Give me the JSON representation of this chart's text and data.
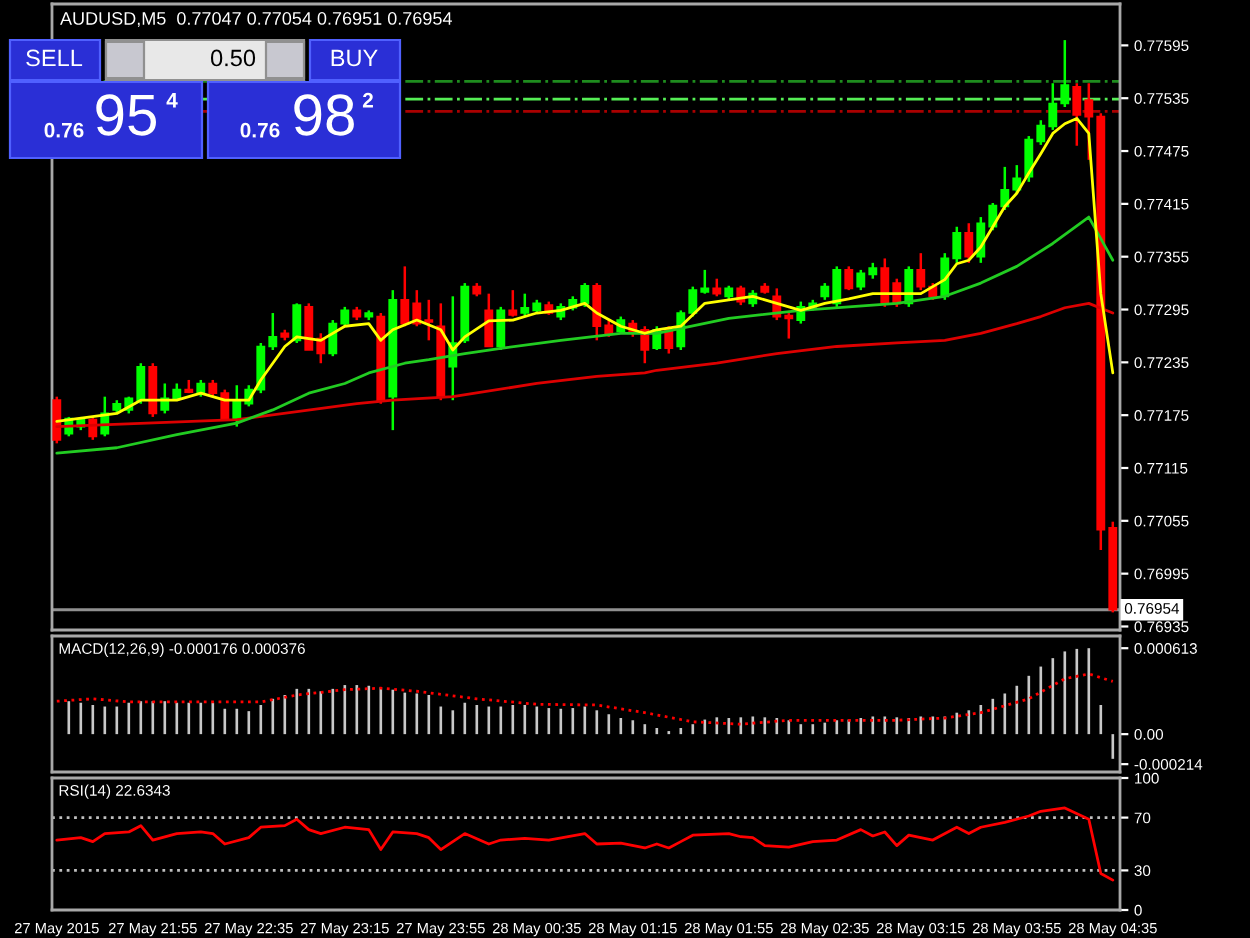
{
  "chart_data": [
    {
      "type": "candlestick",
      "title": "AUDUSD,M5  0.77047 0.77054 0.76951 0.76954",
      "annotations": [
        "SELL",
        "0.50",
        "BUY",
        "0.76",
        "95",
        "4",
        "0.76",
        "98",
        "2"
      ],
      "x": [
        "2015-05-27T21:15",
        "2015-05-27T21:20",
        "2015-05-27T21:25",
        "2015-05-27T21:30",
        "2015-05-27T21:35",
        "2015-05-27T21:40",
        "2015-05-27T21:45",
        "2015-05-27T21:50",
        "2015-05-27T21:55",
        "2015-05-27T22:00",
        "2015-05-27T22:05",
        "2015-05-27T22:10",
        "2015-05-27T22:15",
        "2015-05-27T22:20",
        "2015-05-27T22:25",
        "2015-05-27T22:30",
        "2015-05-27T22:35",
        "2015-05-27T22:40",
        "2015-05-27T22:45",
        "2015-05-27T22:50",
        "2015-05-27T22:55",
        "2015-05-27T23:00",
        "2015-05-27T23:05",
        "2015-05-27T23:10",
        "2015-05-27T23:15",
        "2015-05-27T23:20",
        "2015-05-27T23:25",
        "2015-05-27T23:30",
        "2015-05-27T23:35",
        "2015-05-27T23:40",
        "2015-05-27T23:45",
        "2015-05-27T23:50",
        "2015-05-27T23:55",
        "2015-05-28T00:00",
        "2015-05-28T00:05",
        "2015-05-28T00:10",
        "2015-05-28T00:15",
        "2015-05-28T00:20",
        "2015-05-28T00:25",
        "2015-05-28T00:30",
        "2015-05-28T00:35",
        "2015-05-28T00:40",
        "2015-05-28T00:45",
        "2015-05-28T00:50",
        "2015-05-28T00:55",
        "2015-05-28T01:00",
        "2015-05-28T01:05",
        "2015-05-28T01:10",
        "2015-05-28T01:15",
        "2015-05-28T01:20",
        "2015-05-28T01:25",
        "2015-05-28T01:30",
        "2015-05-28T01:35",
        "2015-05-28T01:40",
        "2015-05-28T01:45",
        "2015-05-28T01:50",
        "2015-05-28T01:55",
        "2015-05-28T02:00",
        "2015-05-28T02:05",
        "2015-05-28T02:10",
        "2015-05-28T02:15",
        "2015-05-28T02:20",
        "2015-05-28T02:25",
        "2015-05-28T02:30",
        "2015-05-28T02:35",
        "2015-05-28T02:40",
        "2015-05-28T02:45",
        "2015-05-28T02:50",
        "2015-05-28T02:55",
        "2015-05-28T03:00",
        "2015-05-28T03:05",
        "2015-05-28T03:10",
        "2015-05-28T03:15",
        "2015-05-28T03:20",
        "2015-05-28T03:25",
        "2015-05-28T03:30",
        "2015-05-28T03:35",
        "2015-05-28T03:40",
        "2015-05-28T03:45",
        "2015-05-28T03:50",
        "2015-05-28T03:55",
        "2015-05-28T04:00",
        "2015-05-28T04:05",
        "2015-05-28T04:10",
        "2015-05-28T04:15",
        "2015-05-28T04:20",
        "2015-05-28T04:25",
        "2015-05-28T04:30",
        "2015-05-28T04:35"
      ],
      "ohlc": [
        [
          0.77192,
          0.77196,
          0.77143,
          0.77147
        ],
        [
          0.77154,
          0.77173,
          0.77151,
          0.77171
        ],
        [
          0.77162,
          0.77173,
          0.77158,
          0.7717
        ],
        [
          0.7717,
          0.77173,
          0.77147,
          0.77151
        ],
        [
          0.77154,
          0.77196,
          0.77151,
          0.77177
        ],
        [
          0.77181,
          0.77192,
          0.77177,
          0.77188
        ],
        [
          0.77181,
          0.77196,
          0.77177,
          0.77194
        ],
        [
          0.77192,
          0.77234,
          0.77188,
          0.7723
        ],
        [
          0.7723,
          0.77234,
          0.77173,
          0.77177
        ],
        [
          0.77181,
          0.77211,
          0.77177,
          0.77194
        ],
        [
          0.77194,
          0.77211,
          0.77192,
          0.77204
        ],
        [
          0.77204,
          0.77215,
          0.772,
          0.77201
        ],
        [
          0.77201,
          0.77215,
          0.77196,
          0.77211
        ],
        [
          0.77211,
          0.77215,
          0.77196,
          0.772
        ],
        [
          0.772,
          0.77204,
          0.7717,
          0.77171
        ],
        [
          0.7717,
          0.77209,
          0.77162,
          0.77192
        ],
        [
          0.77188,
          0.77209,
          0.77185,
          0.77204
        ],
        [
          0.77204,
          0.77257,
          0.772,
          0.77253
        ],
        [
          0.77253,
          0.77291,
          0.77249,
          0.77264
        ],
        [
          0.77268,
          0.77272,
          0.7726,
          0.77264
        ],
        [
          0.7726,
          0.77302,
          0.77257,
          0.773
        ],
        [
          0.77298,
          0.77302,
          0.77249,
          0.77249
        ],
        [
          0.77262,
          0.77268,
          0.77234,
          0.77245
        ],
        [
          0.77245,
          0.77283,
          0.77242,
          0.77279
        ],
        [
          0.77279,
          0.77298,
          0.77276,
          0.77294
        ],
        [
          0.77294,
          0.77298,
          0.77283,
          0.77287
        ],
        [
          0.77287,
          0.77294,
          0.77283,
          0.77291
        ],
        [
          0.77287,
          0.77291,
          0.77188,
          0.77192
        ],
        [
          0.77196,
          0.77317,
          0.77158,
          0.77306
        ],
        [
          0.77306,
          0.77344,
          0.77276,
          0.77279
        ],
        [
          0.77302,
          0.77317,
          0.77276,
          0.77279
        ],
        [
          0.77283,
          0.77306,
          0.7726,
          0.77281
        ],
        [
          0.77276,
          0.77302,
          0.77192,
          0.77196
        ],
        [
          0.7723,
          0.7731,
          0.77192,
          0.77257
        ],
        [
          0.7726,
          0.77325,
          0.77257,
          0.77321
        ],
        [
          0.77321,
          0.77325,
          0.7731,
          0.77313
        ],
        [
          0.77294,
          0.77313,
          0.77253,
          0.77253
        ],
        [
          0.77253,
          0.77298,
          0.77249,
          0.77294
        ],
        [
          0.77294,
          0.77317,
          0.77287,
          0.77289
        ],
        [
          0.77291,
          0.77313,
          0.77287,
          0.77297
        ],
        [
          0.77294,
          0.77306,
          0.77291,
          0.77302
        ],
        [
          0.773,
          0.77304,
          0.77289,
          0.77291
        ],
        [
          0.77287,
          0.77302,
          0.77283,
          0.77298
        ],
        [
          0.77297,
          0.7731,
          0.77294,
          0.77306
        ],
        [
          0.77302,
          0.77325,
          0.77298,
          0.77322
        ],
        [
          0.77322,
          0.77325,
          0.7726,
          0.77276
        ],
        [
          0.77277,
          0.77283,
          0.77264,
          0.77268
        ],
        [
          0.7727,
          0.77287,
          0.77268,
          0.77283
        ],
        [
          0.77279,
          0.77283,
          0.77264,
          0.77268
        ],
        [
          0.77272,
          0.77276,
          0.77234,
          0.77249
        ],
        [
          0.77251,
          0.77276,
          0.77249,
          0.77272
        ],
        [
          0.77272,
          0.77276,
          0.77245,
          0.77251
        ],
        [
          0.77253,
          0.77294,
          0.77249,
          0.77291
        ],
        [
          0.77291,
          0.77321,
          0.77287,
          0.77317
        ],
        [
          0.77315,
          0.7734,
          0.77313,
          0.77319
        ],
        [
          0.77319,
          0.7733,
          0.7731,
          0.77313
        ],
        [
          0.7731,
          0.77322,
          0.77306,
          0.77319
        ],
        [
          0.77319,
          0.77322,
          0.773,
          0.77304
        ],
        [
          0.77302,
          0.77317,
          0.77298,
          0.77313
        ],
        [
          0.77321,
          0.77325,
          0.77313,
          0.77315
        ],
        [
          0.7731,
          0.77319,
          0.77283,
          0.77287
        ],
        [
          0.77288,
          0.77291,
          0.77262,
          0.77285
        ],
        [
          0.77283,
          0.77304,
          0.77279,
          0.77298
        ],
        [
          0.77298,
          0.77306,
          0.77294,
          0.77302
        ],
        [
          0.7731,
          0.77325,
          0.77306,
          0.77321
        ],
        [
          0.77302,
          0.77344,
          0.77298,
          0.7734
        ],
        [
          0.7734,
          0.77344,
          0.77317,
          0.77319
        ],
        [
          0.77321,
          0.7734,
          0.77317,
          0.77336
        ],
        [
          0.77335,
          0.77348,
          0.7733,
          0.77342
        ],
        [
          0.77342,
          0.77353,
          0.77298,
          0.77302
        ],
        [
          0.77325,
          0.7733,
          0.77298,
          0.77302
        ],
        [
          0.77302,
          0.77344,
          0.77298,
          0.7734
        ],
        [
          0.7734,
          0.77359,
          0.77317,
          0.77321
        ],
        [
          0.77321,
          0.77325,
          0.77306,
          0.7731
        ],
        [
          0.7731,
          0.77359,
          0.77306,
          0.77353
        ],
        [
          0.77353,
          0.77389,
          0.77348,
          0.77382
        ],
        [
          0.77382,
          0.77393,
          0.77348,
          0.77355
        ],
        [
          0.77355,
          0.774,
          0.77348,
          0.77393
        ],
        [
          0.77389,
          0.77416,
          0.77385,
          0.77413
        ],
        [
          0.77412,
          0.77457,
          0.77408,
          0.77431
        ],
        [
          0.77431,
          0.77459,
          0.77427,
          0.77444
        ],
        [
          0.77446,
          0.77492,
          0.7744,
          0.77488
        ],
        [
          0.77486,
          0.7751,
          0.77482,
          0.77504
        ],
        [
          0.77503,
          0.77552,
          0.77499,
          0.77529
        ],
        [
          0.77529,
          0.77601,
          0.77525,
          0.7755
        ],
        [
          0.77548,
          0.77552,
          0.77481,
          0.77516
        ],
        [
          0.77533,
          0.77552,
          0.77465,
          0.77514
        ],
        [
          0.77514,
          0.77518,
          0.77022,
          0.77045
        ],
        [
          0.77047,
          0.77054,
          0.76951,
          0.76954
        ]
      ],
      "colors": [
        "#ff0000",
        "#00ff00",
        "#00ff00",
        "#ff0000",
        "#00ff00",
        "#00ff00",
        "#00ff00",
        "#00ff00",
        "#ff0000",
        "#00ff00",
        "#00ff00",
        "#ff0000",
        "#00ff00",
        "#ff0000",
        "#ff0000",
        "#00ff00",
        "#00ff00",
        "#00ff00",
        "#00ff00",
        "#ff0000",
        "#00ff00",
        "#ff0000",
        "#ff0000",
        "#00ff00",
        "#00ff00",
        "#ff0000",
        "#00ff00",
        "#ff0000",
        "#00ff00",
        "#ff0000",
        "#ff0000",
        "#ff0000",
        "#ff0000",
        "#00ff00",
        "#00ff00",
        "#ff0000",
        "#ff0000",
        "#00ff00",
        "#ff0000",
        "#00ff00",
        "#00ff00",
        "#ff0000",
        "#00ff00",
        "#00ff00",
        "#00ff00",
        "#ff0000",
        "#ff0000",
        "#00ff00",
        "#ff0000",
        "#ff0000",
        "#00ff00",
        "#ff0000",
        "#00ff00",
        "#00ff00",
        "#00ff00",
        "#ff0000",
        "#00ff00",
        "#ff0000",
        "#00ff00",
        "#ff0000",
        "#ff0000",
        "#ff0000",
        "#00ff00",
        "#00ff00",
        "#00ff00",
        "#00ff00",
        "#ff0000",
        "#00ff00",
        "#00ff00",
        "#ff0000",
        "#ff0000",
        "#00ff00",
        "#ff0000",
        "#ff0000",
        "#00ff00",
        "#00ff00",
        "#ff0000",
        "#00ff00",
        "#00ff00",
        "#00ff00",
        "#00ff00",
        "#00ff00",
        "#00ff00",
        "#00ff00",
        "#00ff00",
        "#ff0000",
        "#ff0000",
        "#ff0000",
        "#ff0000"
      ],
      "series": [
        {
          "type": "line",
          "color": "#dd0000",
          "x": [
            "2015-05-27T21:15",
            "2015-05-27T22:30",
            "2015-05-27T23:20",
            "2015-05-27T23:35",
            "2015-05-28T00:00",
            "2015-05-28T00:35",
            "2015-05-28T01:00",
            "2015-05-28T01:20",
            "2015-05-28T01:25",
            "2015-05-28T01:50",
            "2015-05-28T02:15",
            "2015-05-28T02:40",
            "2015-05-28T03:05",
            "2015-05-28T03:25",
            "2015-05-28T03:40",
            "2015-05-28T03:55",
            "2015-05-28T04:05",
            "2015-05-28T04:15",
            "2015-05-28T04:25",
            "2015-05-28T04:35"
          ],
          "values": [
            0.77162,
            0.7717,
            0.77188,
            0.77192,
            0.77196,
            0.77211,
            0.77219,
            0.77223,
            0.77226,
            0.77234,
            0.77245,
            0.77253,
            0.77257,
            0.7726,
            0.77268,
            0.77279,
            0.77287,
            0.77297,
            0.77302,
            0.77291
          ]
        },
        {
          "type": "line",
          "color": "#22cc22",
          "x": [
            "2015-05-27T21:15",
            "2015-05-27T21:40",
            "2015-05-27T22:05",
            "2015-05-27T22:30",
            "2015-05-27T22:45",
            "2015-05-27T23:00",
            "2015-05-27T23:15",
            "2015-05-27T23:25",
            "2015-05-27T23:40",
            "2015-05-27T23:50",
            "2015-05-28T00:05",
            "2015-05-28T00:20",
            "2015-05-28T00:45",
            "2015-05-28T01:10",
            "2015-05-28T01:25",
            "2015-05-28T01:55",
            "2015-05-28T02:25",
            "2015-05-28T03:05",
            "2015-05-28T03:25",
            "2015-05-28T03:40",
            "2015-05-28T03:55",
            "2015-05-28T04:10",
            "2015-05-28T04:25",
            "2015-05-28T04:35"
          ],
          "values": [
            0.77132,
            0.77138,
            0.77153,
            0.77166,
            0.77181,
            0.772,
            0.77211,
            0.77223,
            0.77234,
            0.77238,
            0.77245,
            0.77251,
            0.7726,
            0.77268,
            0.77268,
            0.77285,
            0.77294,
            0.77302,
            0.7731,
            0.77325,
            0.77344,
            0.7737,
            0.774,
            0.77351
          ]
        },
        {
          "type": "line",
          "color": "#ffff00",
          "x": [
            "2015-05-27T21:15",
            "2015-05-27T21:40",
            "2015-05-27T21:50",
            "2015-05-27T22:05",
            "2015-05-27T22:15",
            "2015-05-27T22:25",
            "2015-05-27T22:35",
            "2015-05-27T22:40",
            "2015-05-27T22:50",
            "2015-05-27T22:55",
            "2015-05-27T23:05",
            "2015-05-27T23:15",
            "2015-05-27T23:25",
            "2015-05-27T23:30",
            "2015-05-27T23:35",
            "2015-05-27T23:45",
            "2015-05-27T23:55",
            "2015-05-28T00:00",
            "2015-05-28T00:05",
            "2015-05-28T00:15",
            "2015-05-28T00:25",
            "2015-05-28T00:35",
            "2015-05-28T00:45",
            "2015-05-28T00:55",
            "2015-05-28T01:00",
            "2015-05-28T01:10",
            "2015-05-28T01:20",
            "2015-05-28T01:25",
            "2015-05-28T01:35",
            "2015-05-28T01:45",
            "2015-05-28T01:55",
            "2015-05-28T02:05",
            "2015-05-28T02:15",
            "2015-05-28T02:25",
            "2015-05-28T02:35",
            "2015-05-28T02:45",
            "2015-05-28T02:55",
            "2015-05-28T03:05",
            "2015-05-28T03:15",
            "2015-05-28T03:25",
            "2015-05-28T03:30",
            "2015-05-28T03:35",
            "2015-05-28T03:40",
            "2015-05-28T03:45",
            "2015-05-28T03:50",
            "2015-05-28T03:55",
            "2015-05-28T04:00",
            "2015-05-28T04:05",
            "2015-05-28T04:10",
            "2015-05-28T04:15",
            "2015-05-28T04:20",
            "2015-05-28T04:25",
            "2015-05-28T04:30",
            "2015-05-28T04:35"
          ],
          "values": [
            0.77168,
            0.77177,
            0.77192,
            0.77192,
            0.772,
            0.77192,
            0.77192,
            0.77215,
            0.77253,
            0.77264,
            0.7726,
            0.77276,
            0.77279,
            0.7726,
            0.77272,
            0.77283,
            0.77272,
            0.77249,
            0.77264,
            0.77282,
            0.77283,
            0.77291,
            0.77294,
            0.77302,
            0.77291,
            0.77276,
            0.77268,
            0.77272,
            0.77276,
            0.77302,
            0.77306,
            0.7731,
            0.77302,
            0.77294,
            0.77302,
            0.77307,
            0.77313,
            0.77313,
            0.77313,
            0.77329,
            0.77347,
            0.77351,
            0.77366,
            0.77389,
            0.77412,
            0.77427,
            0.7745,
            0.77472,
            0.77495,
            0.77506,
            0.77512,
            0.77495,
            0.77313,
            0.77223
          ]
        }
      ],
      "ref_lines": [
        {
          "axis": "y",
          "value": 0.77554,
          "color": "#1e8c1e",
          "line_style": "dashdot"
        },
        {
          "axis": "y",
          "value": 0.77534,
          "color": "#55ee55",
          "line_style": "dashdot"
        },
        {
          "axis": "y",
          "value": 0.7752,
          "color": "#aa0000",
          "line_style": "dashdot"
        },
        {
          "axis": "y",
          "value": 0.76954,
          "label": "0.76954",
          "color": "#909090",
          "line_style": "solid"
        }
      ],
      "xlim": [
        "2015-05-27T21:13",
        "2015-05-28T04:38"
      ],
      "tick_labels": "y",
      "ylim": [
        0.76931,
        0.77642
      ],
      "yticks": [
        0.77595,
        0.77535,
        0.77475,
        0.77415,
        0.77355,
        0.77295,
        0.77235,
        0.77175,
        0.77115,
        0.77055,
        0.76995,
        0.76935
      ],
      "grid": false,
      "legend": false
    },
    {
      "type": "bar",
      "title": "MACD(12,26,9) -0.000176 0.000376",
      "color": "#c8c8c8",
      "x": [
        "2015-05-27T21:20",
        "2015-05-27T21:25",
        "2015-05-27T21:30",
        "2015-05-27T21:35",
        "2015-05-27T21:40",
        "2015-05-27T21:45",
        "2015-05-27T21:50",
        "2015-05-27T21:55",
        "2015-05-27T22:00",
        "2015-05-27T22:05",
        "2015-05-27T22:10",
        "2015-05-27T22:15",
        "2015-05-27T22:20",
        "2015-05-27T22:25",
        "2015-05-27T22:30",
        "2015-05-27T22:35",
        "2015-05-27T22:40",
        "2015-05-27T22:45",
        "2015-05-27T22:50",
        "2015-05-27T22:55",
        "2015-05-27T23:00",
        "2015-05-27T23:05",
        "2015-05-27T23:10",
        "2015-05-27T23:15",
        "2015-05-27T23:20",
        "2015-05-27T23:25",
        "2015-05-27T23:30",
        "2015-05-27T23:35",
        "2015-05-27T23:40",
        "2015-05-27T23:45",
        "2015-05-27T23:50",
        "2015-05-27T23:55",
        "2015-05-28T00:00",
        "2015-05-28T00:05",
        "2015-05-28T00:10",
        "2015-05-28T00:15",
        "2015-05-28T00:20",
        "2015-05-28T00:25",
        "2015-05-28T00:30",
        "2015-05-28T00:35",
        "2015-05-28T00:40",
        "2015-05-28T00:45",
        "2015-05-28T00:50",
        "2015-05-28T00:55",
        "2015-05-28T01:00",
        "2015-05-28T01:05",
        "2015-05-28T01:10",
        "2015-05-28T01:15",
        "2015-05-28T01:20",
        "2015-05-28T01:25",
        "2015-05-28T01:30",
        "2015-05-28T01:35",
        "2015-05-28T01:40",
        "2015-05-28T01:45",
        "2015-05-28T01:50",
        "2015-05-28T01:55",
        "2015-05-28T02:00",
        "2015-05-28T02:05",
        "2015-05-28T02:10",
        "2015-05-28T02:15",
        "2015-05-28T02:20",
        "2015-05-28T02:25",
        "2015-05-28T02:30",
        "2015-05-28T02:35",
        "2015-05-28T02:40",
        "2015-05-28T02:45",
        "2015-05-28T02:50",
        "2015-05-28T02:55",
        "2015-05-28T03:00",
        "2015-05-28T03:05",
        "2015-05-28T03:10",
        "2015-05-28T03:15",
        "2015-05-28T03:20",
        "2015-05-28T03:25",
        "2015-05-28T03:30",
        "2015-05-28T03:35",
        "2015-05-28T03:40",
        "2015-05-28T03:45",
        "2015-05-28T03:50",
        "2015-05-28T03:55",
        "2015-05-28T04:00",
        "2015-05-28T04:05",
        "2015-05-28T04:10",
        "2015-05-28T04:15",
        "2015-05-28T04:20",
        "2015-05-28T04:25",
        "2015-05-28T04:30",
        "2015-05-28T04:35"
      ],
      "values": [
        0.000235,
        0.000224,
        0.000208,
        0.000197,
        0.000197,
        0.000224,
        0.000235,
        0.000235,
        0.000235,
        0.000224,
        0.000224,
        0.000224,
        0.000224,
        0.000181,
        0.000181,
        0.000164,
        0.000208,
        0.000252,
        0.000279,
        0.000323,
        0.000323,
        0.000306,
        0.000323,
        0.00035,
        0.00035,
        0.000345,
        0.000334,
        0.000317,
        0.000296,
        0.00029,
        0.000279,
        0.000197,
        0.00017,
        0.000224,
        0.000208,
        0.000197,
        0.000197,
        0.000208,
        0.000208,
        0.000197,
        0.000186,
        0.000181,
        0.000186,
        0.000197,
        0.00017,
        0.000142,
        0.000115,
        9.9e-05,
        7.1e-05,
        4.4e-05,
        2.2e-05,
        4.4e-05,
        7.1e-05,
        0.000104,
        0.00012,
        0.000115,
        0.00012,
        0.000126,
        0.00012,
        0.000115,
        9.9e-05,
        7.1e-05,
        7.1e-05,
        8.2e-05,
        9.9e-05,
        0.000104,
        0.000115,
        0.000126,
        0.000126,
        0.00012,
        0.000115,
        0.000126,
        0.000126,
        0.000126,
        0.000153,
        0.00017,
        0.000208,
        0.000252,
        0.00029,
        0.000345,
        0.000416,
        0.000482,
        0.000542,
        0.00059,
        0.000608,
        0.000613,
        0.000208,
        -0.000176
      ],
      "series": [
        {
          "type": "line",
          "color": "#ff0000",
          "line_style": "dotted",
          "x": [
            "2015-05-27T21:15",
            "2015-05-27T21:30",
            "2015-05-27T21:45",
            "2015-05-27T22:15",
            "2015-05-27T22:40",
            "2015-05-27T22:55",
            "2015-05-27T23:15",
            "2015-05-27T23:30",
            "2015-05-27T23:45",
            "2015-05-28T00:10",
            "2015-05-28T00:35",
            "2015-05-28T01:00",
            "2015-05-28T01:20",
            "2015-05-28T01:40",
            "2015-05-28T02:00",
            "2015-05-28T02:20",
            "2015-05-28T02:45",
            "2015-05-28T03:05",
            "2015-05-28T03:25",
            "2015-05-28T03:40",
            "2015-05-28T04:00",
            "2015-05-28T04:15",
            "2015-05-28T04:25",
            "2015-05-28T04:35"
          ],
          "values": [
            0.000235,
            0.000252,
            0.00023,
            0.00023,
            0.00023,
            0.000279,
            0.000317,
            0.000328,
            0.000306,
            0.000252,
            0.000213,
            0.000208,
            0.000153,
            8.8e-05,
            7.1e-05,
            9.9e-05,
            9.9e-05,
            9.9e-05,
            0.000115,
            0.000153,
            0.000252,
            0.000395,
            0.00043,
            0.000376
          ]
        }
      ],
      "xlim": [
        "2015-05-27T21:13",
        "2015-05-28T04:38"
      ],
      "tick_labels": "y",
      "ylim": [
        -0.00027,
        0.0007
      ],
      "yticks": [
        0.000613,
        {
          "value": 0,
          "label": "0.00"
        },
        -0.000214
      ],
      "grid": false,
      "legend": false
    },
    {
      "type": "line",
      "title": "RSI(14) 22.6343",
      "series": [
        {
          "color": "#ff0000",
          "x": [
            "2015-05-27T21:15",
            "2015-05-27T21:25",
            "2015-05-27T21:30",
            "2015-05-27T21:35",
            "2015-05-27T21:45",
            "2015-05-27T21:50",
            "2015-05-27T21:55",
            "2015-05-27T22:05",
            "2015-05-27T22:15",
            "2015-05-27T22:20",
            "2015-05-27T22:25",
            "2015-05-27T22:35",
            "2015-05-27T22:40",
            "2015-05-27T22:50",
            "2015-05-27T22:55",
            "2015-05-27T23:00",
            "2015-05-27T23:05",
            "2015-05-27T23:15",
            "2015-05-27T23:25",
            "2015-05-27T23:30",
            "2015-05-27T23:35",
            "2015-05-27T23:45",
            "2015-05-27T23:50",
            "2015-05-27T23:55",
            "2015-05-28T00:05",
            "2015-05-28T00:15",
            "2015-05-28T00:20",
            "2015-05-28T00:30",
            "2015-05-28T00:40",
            "2015-05-28T00:55",
            "2015-05-28T01:00",
            "2015-05-28T01:10",
            "2015-05-28T01:20",
            "2015-05-28T01:25",
            "2015-05-28T01:30",
            "2015-05-28T01:35",
            "2015-05-28T01:40",
            "2015-05-28T01:55",
            "2015-05-28T02:00",
            "2015-05-28T02:05",
            "2015-05-28T02:10",
            "2015-05-28T02:20",
            "2015-05-28T02:30",
            "2015-05-28T02:40",
            "2015-05-28T02:50",
            "2015-05-28T02:55",
            "2015-05-28T03:00",
            "2015-05-28T03:05",
            "2015-05-28T03:10",
            "2015-05-28T03:20",
            "2015-05-28T03:30",
            "2015-05-28T03:35",
            "2015-05-28T03:40",
            "2015-05-28T03:50",
            "2015-05-28T04:00",
            "2015-05-28T04:05",
            "2015-05-28T04:15",
            "2015-05-28T04:25",
            "2015-05-28T04:30",
            "2015-05-28T04:35"
          ],
          "values": [
            53.0,
            54.8,
            51.8,
            57.9,
            59.1,
            63.9,
            53.0,
            57.9,
            59.1,
            57.9,
            50.0,
            54.8,
            62.7,
            63.9,
            68.8,
            60.9,
            57.9,
            62.7,
            60.9,
            45.8,
            59.1,
            57.9,
            54.8,
            45.8,
            57.9,
            50.0,
            53.0,
            54.2,
            53.0,
            57.9,
            50.0,
            50.6,
            47.0,
            50.0,
            47.0,
            51.8,
            56.7,
            57.9,
            55.5,
            54.8,
            48.8,
            47.6,
            51.8,
            53.0,
            60.9,
            56.1,
            59.1,
            48.8,
            56.7,
            53.0,
            62.7,
            57.9,
            62.7,
            66.4,
            71.2,
            74.8,
            77.3,
            68.8,
            27.6,
            22.6343
          ]
        }
      ],
      "ref_lines": [
        {
          "axis": "y",
          "value": 70,
          "color": "#c0c0c0",
          "line_style": "dotted"
        },
        {
          "axis": "y",
          "value": 30,
          "color": "#c0c0c0",
          "line_style": "dotted"
        }
      ],
      "xlim": [
        "2015-05-27T21:13",
        "2015-05-28T04:38"
      ],
      "xticks": [
        {
          "value": "2015-05-27T21:15",
          "label": "27 May 2015"
        },
        {
          "value": "2015-05-27T21:55",
          "label": "27 May 21:55"
        },
        {
          "value": "2015-05-27T22:35",
          "label": "27 May 22:35"
        },
        {
          "value": "2015-05-27T23:15",
          "label": "27 May 23:15"
        },
        {
          "value": "2015-05-27T23:55",
          "label": "27 May 23:55"
        },
        {
          "value": "2015-05-28T00:35",
          "label": "28 May 00:35"
        },
        {
          "value": "2015-05-28T01:15",
          "label": "28 May 01:15"
        },
        {
          "value": "2015-05-28T01:55",
          "label": "28 May 01:55"
        },
        {
          "value": "2015-05-28T02:35",
          "label": "28 May 02:35"
        },
        {
          "value": "2015-05-28T03:15",
          "label": "28 May 03:15"
        },
        {
          "value": "2015-05-28T03:55",
          "label": "28 May 03:55"
        },
        {
          "value": "2015-05-28T04:35",
          "label": "28 May 04:35"
        }
      ],
      "ylim": [
        0,
        100
      ],
      "yticks": [
        100,
        70,
        30,
        0
      ],
      "grid": false,
      "legend": false
    }
  ]
}
